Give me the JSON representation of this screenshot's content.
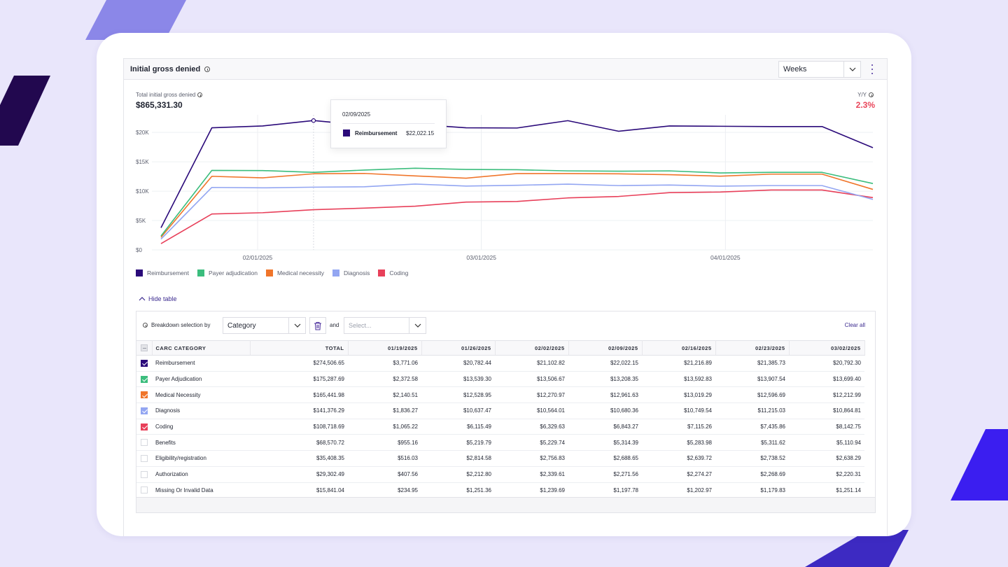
{
  "panel": {
    "title": "Initial gross denied",
    "period_select": "Weeks"
  },
  "metric": {
    "label": "Total initial gross denied",
    "value": "$865,331.30",
    "yy_label": "Y/Y",
    "yy_value": "2.3%"
  },
  "colors": {
    "accent": "#3b2a8f",
    "negative": "#e9455a"
  },
  "tooltip": {
    "date": "02/09/2025",
    "series": "Reimbursement",
    "value": "$22,022.15"
  },
  "chart_data": {
    "type": "line",
    "x": [
      "01/19/2025",
      "01/26/2025",
      "02/02/2025",
      "02/09/2025",
      "02/16/2025",
      "02/23/2025",
      "03/02/2025",
      "03/09/2025",
      "03/16/2025",
      "03/23/2025",
      "03/30/2025",
      "04/06/2025",
      "04/13/2025",
      "04/20/2025",
      "04/27/2025"
    ],
    "x_tick_labels": [
      "02/01/2025",
      "03/01/2025",
      "04/01/2025"
    ],
    "y_tick_labels": [
      "$0",
      "$5K",
      "$10K",
      "$15K",
      "$20K"
    ],
    "ylim": [
      0,
      23000
    ],
    "series": [
      {
        "name": "Reimbursement",
        "color": "#2b0a7a",
        "values": [
          3771.06,
          20782.44,
          21102.82,
          22022.15,
          21216.89,
          21385.73,
          20792.3,
          20750,
          22000,
          20200,
          21100,
          21050,
          21000,
          21000,
          17400
        ]
      },
      {
        "name": "Payer adjudication",
        "color": "#3bbd7d",
        "values": [
          2372.58,
          13539.3,
          13506.67,
          13208.35,
          13592.83,
          13907.54,
          13699.4,
          13650,
          13450,
          13400,
          13450,
          13100,
          13200,
          13200,
          11300
        ]
      },
      {
        "name": "Medical necessity",
        "color": "#f0752a",
        "values": [
          2140.51,
          12528.95,
          12270.97,
          12961.63,
          13019.29,
          12596.69,
          12212.99,
          13000,
          13000,
          12950,
          12800,
          12550,
          12900,
          12900,
          10300
        ]
      },
      {
        "name": "Diagnosis",
        "color": "#93a6f2",
        "values": [
          1836.27,
          10637.47,
          10564.01,
          10680.36,
          10749.54,
          11215.03,
          10864.81,
          11000,
          11200,
          10950,
          11050,
          10850,
          10950,
          10950,
          8600
        ]
      },
      {
        "name": "Coding",
        "color": "#e8405a",
        "values": [
          1065.22,
          6115.49,
          6329.63,
          6843.27,
          7115.26,
          7435.86,
          8142.75,
          8250,
          8850,
          9100,
          9750,
          9850,
          10200,
          10200,
          8900
        ]
      }
    ]
  },
  "table_section": {
    "hide_label": "Hide table",
    "breakdown_label": "Breakdown selection by",
    "category_select": "Category",
    "and_label": "and",
    "second_select_placeholder": "Select...",
    "clear_all": "Clear all",
    "columns": [
      "CARC CATEGORY",
      "TOTAL",
      "01/19/2025",
      "01/26/2025",
      "02/02/2025",
      "02/09/2025",
      "02/16/2025",
      "02/23/2025",
      "03/02/2025"
    ],
    "rows": [
      {
        "checked": true,
        "color": "#2b0a7a",
        "cells": [
          "Reimbursement",
          "$274,506.65",
          "$3,771.06",
          "$20,782.44",
          "$21,102.82",
          "$22,022.15",
          "$21,216.89",
          "$21,385.73",
          "$20,792.30"
        ]
      },
      {
        "checked": true,
        "color": "#3bbd7d",
        "cells": [
          "Payer Adjudication",
          "$175,287.69",
          "$2,372.58",
          "$13,539.30",
          "$13,506.67",
          "$13,208.35",
          "$13,592.83",
          "$13,907.54",
          "$13,699.40"
        ]
      },
      {
        "checked": true,
        "color": "#f0752a",
        "cells": [
          "Medical Necessity",
          "$165,441.98",
          "$2,140.51",
          "$12,528.95",
          "$12,270.97",
          "$12,961.63",
          "$13,019.29",
          "$12,596.69",
          "$12,212.99"
        ]
      },
      {
        "checked": true,
        "color": "#93a6f2",
        "cells": [
          "Diagnosis",
          "$141,376.29",
          "$1,836.27",
          "$10,637.47",
          "$10,564.01",
          "$10,680.36",
          "$10,749.54",
          "$11,215.03",
          "$10,864.81"
        ]
      },
      {
        "checked": true,
        "color": "#e8405a",
        "cells": [
          "Coding",
          "$108,718.69",
          "$1,065.22",
          "$6,115.49",
          "$6,329.63",
          "$6,843.27",
          "$7,115.26",
          "$7,435.86",
          "$8,142.75"
        ]
      },
      {
        "checked": false,
        "color": "",
        "cells": [
          "Benefits",
          "$68,570.72",
          "$955.16",
          "$5,219.79",
          "$5,229.74",
          "$5,314.39",
          "$5,283.98",
          "$5,311.62",
          "$5,110.94"
        ]
      },
      {
        "checked": false,
        "color": "",
        "cells": [
          "Eligibility/registration",
          "$35,408.35",
          "$516.03",
          "$2,814.58",
          "$2,756.83",
          "$2,688.65",
          "$2,639.72",
          "$2,738.52",
          "$2,638.29"
        ]
      },
      {
        "checked": false,
        "color": "",
        "cells": [
          "Authorization",
          "$29,302.49",
          "$407.56",
          "$2,212.80",
          "$2,339.61",
          "$2,271.56",
          "$2,274.27",
          "$2,268.69",
          "$2,220.31"
        ]
      },
      {
        "checked": false,
        "color": "",
        "cells": [
          "Missing Or Invalid Data",
          "$15,841.04",
          "$234.95",
          "$1,251.36",
          "$1,239.69",
          "$1,197.78",
          "$1,202.97",
          "$1,179.83",
          "$1,251.14"
        ]
      }
    ]
  }
}
